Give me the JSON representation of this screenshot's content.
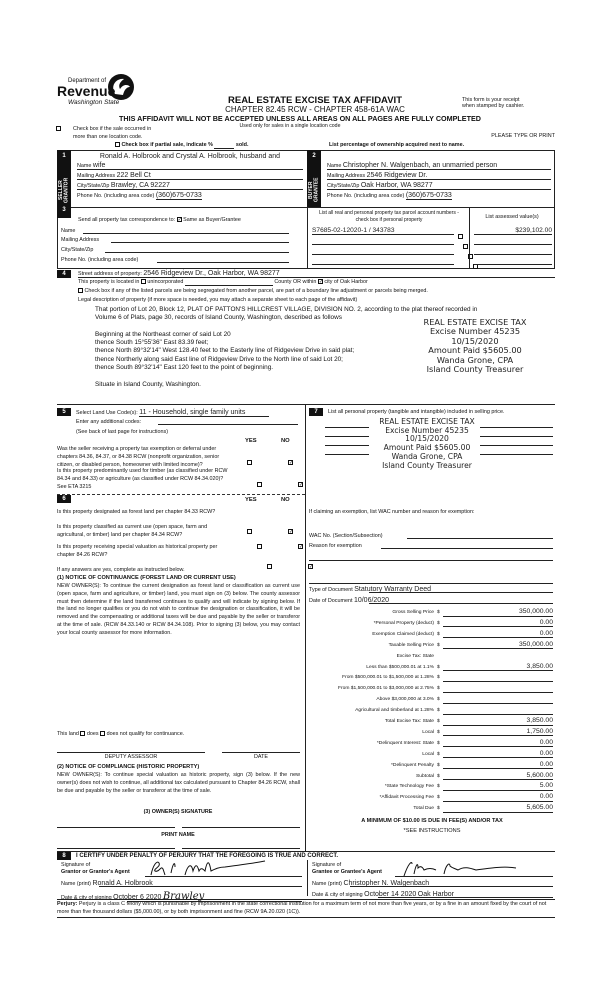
{
  "header": {
    "logo_line1": "Department of",
    "logo_line2": "Revenue",
    "logo_line3": "Washington State",
    "title": "REAL ESTATE EXCISE TAX AFFIDAVIT",
    "chapter": "CHAPTER 82.45 RCW - CHAPTER 458-61A WAC",
    "receipt_note1": "This form is your receipt",
    "receipt_note2": "when stamped by cashier.",
    "warning": "THIS AFFIDAVIT WILL NOT BE ACCEPTED UNLESS ALL AREAS ON ALL PAGES ARE FULLY COMPLETED",
    "used_only": "Used only for sales in a single location code",
    "multi_location1": "Check box if the sale occurred in",
    "multi_location2": "more than one location code.",
    "type_or_print": "PLEASE TYPE OR PRINT",
    "partial_sale": "Check box if partial sale, indicate %",
    "partial_sold": "sold.",
    "list_percentage": "List percentage of ownership acquired next to name."
  },
  "seller": {
    "number": "1",
    "side_label": "SELLER GRANTOR",
    "name_line1": "Ronald A. Holbrook and Crystal A. Holbrook, husband and",
    "name_label": "Name",
    "name_line2": "wife",
    "mailing_label": "Mailing Address",
    "mailing": "222 Bell Ct",
    "city_label": "City/State/Zip",
    "city": "Brawley, CA 92227",
    "phone_label": "Phone No. (including area code)",
    "phone": "(360)675-0733"
  },
  "buyer": {
    "number": "2",
    "side_label": "BUYER GRANTEE",
    "name_label": "Name",
    "name": "Christopher N. Walgenbach, an unmarried person",
    "mailing_label": "Mailing Address",
    "mailing": "2546 Ridgeview Dr.",
    "city_label": "City/State/Zip",
    "city": "Oak Harbor, WA 98277",
    "phone_label": "Phone No. (including area code)",
    "phone": "(360)675-0733"
  },
  "correspondence": {
    "number": "3",
    "label": "Send all property tax correspondence to:",
    "same_label": "Same as Buyer/Grantee",
    "same_checked": true,
    "name_label": "Name",
    "mailing_label": "Mailing Address",
    "city_label": "City/State/Zip",
    "phone_label": "Phone No. (including area code)"
  },
  "parcels": {
    "header": "List all real and personal property tax parcel account numbers - check box if personal property",
    "value_header": "List assessed value(s)",
    "rows": [
      {
        "account": "S7685-02-12020-1 / 343783",
        "value": "$239,102.00"
      },
      {
        "account": "",
        "value": ""
      },
      {
        "account": "",
        "value": ""
      },
      {
        "account": "",
        "value": ""
      }
    ]
  },
  "property": {
    "number": "4",
    "street_label": "Street address of property:",
    "street": "2546 Ridgeview Dr., Oak Harbor, WA 98277",
    "located_label": "This property is located in",
    "unincorporated": "unincorporated",
    "county_or": "County OR within",
    "city_of": "city of Oak Harbor",
    "city_checked": true,
    "segregated": "Check box if any of the listed parcels are being segregated from another parcel, are part of a boundary line adjustment or parcels being merged.",
    "legal_label": "Legal description of property (if more space is needed, you may attach a separate sheet to each page of the affidavit)",
    "legal_lines": [
      "That portion of Lot 20, Block 12, PLAT OF PATTON'S HILLCREST VILLAGE, DIVISION NO. 2, according to the plat thereof recorded in",
      "Volume 6 of Plats, page 30, records of Island County, Washington, described as follows",
      "",
      "Beginning at the Northeast corner of said Lot 20",
      "thence South 15°55'36\" East 83.39 feet;",
      "thence North 89°32'14\" West 128.40 feet to the Easterly line of Ridgeview Drive in said plat;",
      "thence Northerly along said East line of Ridgeview Drive to the North line of said Lot 20;",
      "thence South 89°32'14\" East 120 feet to the point of beginning.",
      "",
      "Situate in Island County, Washington."
    ]
  },
  "stamp": {
    "line1": "REAL ESTATE EXCISE TAX",
    "line2": "Excise Number 45235",
    "line3": "10/15/2020",
    "line4": "Amount Paid $5605.00",
    "line5": "Wanda Grone, CPA",
    "line6": "Island County Treasurer"
  },
  "land_use": {
    "number": "5",
    "label": "Select Land Use Code(s):",
    "code": "11 - Household, single family units",
    "additional": "Enter any additional codes:",
    "see_back": "(See back of last page for instructions)",
    "yes": "YES",
    "no": "NO",
    "questions": [
      {
        "text": "Was the seller receiving a property tax exemption or deferral under chapters 84.36, 84.37, or 84.38 RCW (nonprofit organization, senior citizen, or disabled person, homeowner with limited income)?",
        "answer": "no"
      },
      {
        "text": "Is this property predominantly used for timber (as classified under RCW 84.34 and 84.33) or agriculture (as classified under RCW 84.34.020)? See ETA 3215",
        "answer": "no"
      }
    ]
  },
  "section6": {
    "number": "6",
    "yes": "YES",
    "no": "NO",
    "questions": [
      {
        "text": "Is this property designated as forest land per chapter 84.33 RCW?",
        "answer": "no"
      },
      {
        "text": "Is this property classified as current use (open space, farm and agricultural, or timber) land per chapter 84.34 RCW?",
        "answer": "no"
      },
      {
        "text": "Is this property receiving special valuation as historical property per chapter 84.26 RCW?",
        "answer": "no"
      }
    ],
    "if_yes": "If any answers are yes, complete as instructed below.",
    "notice1_title": "(1) NOTICE OF CONTINUANCE (FOREST LAND OR CURRENT USE)",
    "notice1_text": "NEW OWNER(S): To continue the current designation as forest land or classification as current use (open space, farm and agriculture, or timber) land, you must sign on (3) below. The county assessor must then determine if the land transferred continues to qualify and will indicate by signing below. If the land no longer qualifies or you do not wish to continue the designation or classification, it will be removed and the compensating or additional taxes will be due and payable by the seller or transferor at the time of sale. (RCW 84.33.140 or RCW 84.34.108). Prior to signing (3) below, you may contact your local county assessor for more information.",
    "this_land": "This land",
    "does": "does",
    "does_not": "does not qualify for continuance.",
    "deputy": "DEPUTY ASSESSOR",
    "date": "DATE",
    "notice2_title": "(2) NOTICE OF COMPLIANCE (HISTORIC PROPERTY)",
    "notice2_text": "NEW OWNER(S): To continue special valuation as historic property, sign (3) below. If the new owner(s) does not wish to continue, all additional tax calculated pursuant to Chapter 84.26 RCW, shall be due and payable by the seller or transferor at the time of sale.",
    "owner_sig": "(3) OWNER(S) SIGNATURE",
    "print_name": "PRINT NAME"
  },
  "section7": {
    "number": "7",
    "label": "List all personal property (tangible and intangible) included in selling price.",
    "exemption_label": "If claiming an exemption, list WAC number and reason for exemption:",
    "wac_label": "WAC No. (Section/Subsection)",
    "reason_label": "Reason for exemption",
    "doc_type_label": "Type of Document",
    "doc_type": "Statutory Warranty Deed",
    "doc_date_label": "Date of Document",
    "doc_date": "10/06/2020",
    "tax_rows": [
      {
        "label": "Gross Selling Price",
        "value": "350,000.00"
      },
      {
        "label": "*Personal Property (deduct)",
        "value": "0.00"
      },
      {
        "label": "Exemption Claimed (deduct)",
        "value": "0.00"
      },
      {
        "label": "Taxable Selling Price",
        "value": "350,000.00"
      },
      {
        "label": "Excise Tax: State",
        "value": null,
        "heading": true
      },
      {
        "label": "Less than $500,000.01 at 1.1%",
        "value": "3,850.00"
      },
      {
        "label": "From $500,000.01 to $1,500,000 at 1.28%",
        "value": ""
      },
      {
        "label": "From $1,500,000.01 to $3,000,000 at 2.75%",
        "value": ""
      },
      {
        "label": "Above $3,000,000 at 3.0%",
        "value": ""
      },
      {
        "label": "Agricultural and timberland at 1.28%",
        "value": ""
      },
      {
        "label": "Total Excise Tax: State",
        "value": "3,850.00"
      },
      {
        "label": "Local",
        "value": "1,750.00"
      },
      {
        "label": "*Delinquent Interest: State",
        "value": "0.00"
      },
      {
        "label": "Local",
        "value": "0.00"
      },
      {
        "label": "*Delinquent Penalty",
        "value": "0.00"
      },
      {
        "label": "Subtotal",
        "value": "5,600.00"
      },
      {
        "label": "*State Technology Fee",
        "value": "5.00"
      },
      {
        "label": "*Affidavit Processing Fee",
        "value": "0.00"
      },
      {
        "label": "Total Due",
        "value": "5,605.00"
      }
    ],
    "minimum": "A MINIMUM OF $10.00 IS DUE IN FEE(S) AND/OR TAX",
    "see_instructions": "*SEE INSTRUCTIONS"
  },
  "certify": {
    "number": "8",
    "text": "I CERTIFY UNDER PENALTY OF PERJURY THAT THE FOREGOING IS TRUE AND CORRECT.",
    "grantor_sig1": "Signature of",
    "grantor_sig2": "Grantor or Grantor's Agent",
    "grantor_name_label": "Name (print)",
    "grantor_name": "Ronald A. Holbrook",
    "grantor_date_label": "Date & city of signing",
    "grantor_date": "October 6 2020",
    "grantor_city": "Brawley",
    "grantee_sig1": "Signature of",
    "grantee_sig2": "Grantee or Grantee's Agent",
    "grantee_name_label": "Name (print)",
    "grantee_name": "Christopher N. Walgenbach",
    "grantee_date_label": "Date & city of signing",
    "grantee_date": "October 14 2020",
    "grantee_city": "Oak Harbor",
    "perjury_label": "Perjury:",
    "perjury_text": "Perjury is a class C felony which is punishable by imprisonment in the state correctional institution for a maximum term of not more than five years, or by a fine in an amount fixed by the court of not more than five thousand dollars ($5,000.00), or by both imprisonment and fine (RCW 9A.20.020 (1C))."
  }
}
